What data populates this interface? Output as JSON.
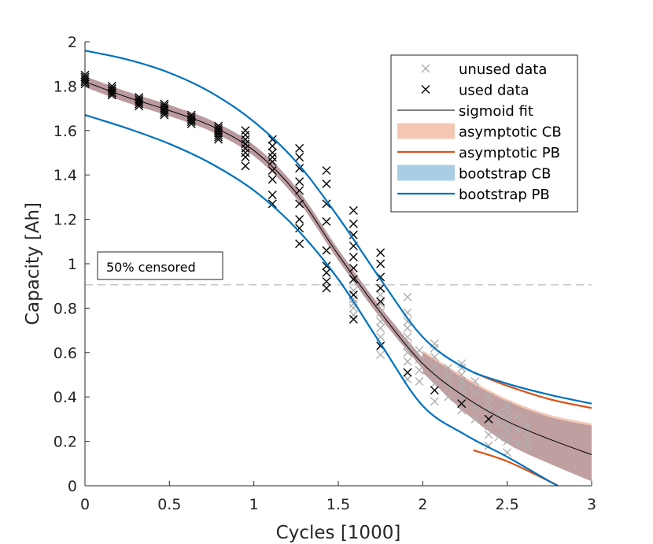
{
  "chart_data": {
    "type": "scatter",
    "xlabel": "Cycles [1000]",
    "ylabel": "Capacity [Ah]",
    "xlim": [
      0,
      3
    ],
    "ylim": [
      0,
      2
    ],
    "x_ticks": [
      "0",
      "0.5",
      "1",
      "1.5",
      "2",
      "2.5",
      "3"
    ],
    "y_ticks": [
      "0",
      "0.2",
      "0.4",
      "0.6",
      "0.8",
      "1",
      "1.2",
      "1.4",
      "1.6",
      "1.8",
      "2"
    ],
    "x_tick_values": [
      0,
      0.5,
      1,
      1.5,
      2,
      2.5,
      3
    ],
    "y_tick_values": [
      0,
      0.2,
      0.4,
      0.6,
      0.8,
      1,
      1.2,
      1.4,
      1.6,
      1.8,
      2
    ],
    "censor_threshold": 0.905,
    "annotation": "50% censored",
    "legend": {
      "position": "top-right",
      "entries": [
        {
          "label": "unused data",
          "style": "marker-x",
          "color": "#b0b0b0"
        },
        {
          "label": "used data",
          "style": "marker-x",
          "color": "#000000"
        },
        {
          "label": "sigmoid fit",
          "style": "line",
          "color": "#000000"
        },
        {
          "label": "asymptotic CB",
          "style": "band",
          "color": "#f4c7b4"
        },
        {
          "label": "asymptotic PB",
          "style": "line",
          "color": "#d95319"
        },
        {
          "label": "bootstrap CB",
          "style": "band",
          "color": "#a9cde5"
        },
        {
          "label": "bootstrap PB",
          "style": "line",
          "color": "#0072bd"
        }
      ]
    },
    "colors": {
      "unused": "#b0b0b0",
      "used": "#000000",
      "fit": "#000000",
      "asym_cb": "#f4c7b4",
      "asym_pb": "#d95319",
      "boot_cb": "#a9cde5",
      "boot_pb": "#0072bd",
      "overlap_cb": "#ba9a9e",
      "censor_line": "#b5b5b5"
    },
    "series": [
      {
        "name": "sigmoid fit",
        "x": [
          0,
          0.25,
          0.5,
          0.75,
          1,
          1.25,
          1.5,
          1.75,
          2,
          2.25,
          2.5,
          2.75,
          3
        ],
        "y": [
          1.82,
          1.75,
          1.69,
          1.62,
          1.51,
          1.32,
          1.04,
          0.78,
          0.55,
          0.4,
          0.29,
          0.21,
          0.14
        ]
      },
      {
        "name": "bootstrap PB upper",
        "x": [
          0,
          0.25,
          0.5,
          0.75,
          1,
          1.25,
          1.5,
          1.75,
          2,
          2.25,
          2.5,
          2.75,
          3
        ],
        "y": [
          1.96,
          1.92,
          1.86,
          1.77,
          1.64,
          1.46,
          1.21,
          0.93,
          0.67,
          0.53,
          0.46,
          0.41,
          0.37
        ]
      },
      {
        "name": "bootstrap PB lower",
        "x": [
          0,
          0.25,
          0.5,
          0.75,
          1,
          1.25,
          1.5,
          1.75,
          2,
          2.25,
          2.5,
          2.75,
          2.8
        ],
        "y": [
          1.67,
          1.61,
          1.54,
          1.45,
          1.33,
          1.16,
          0.93,
          0.64,
          0.36,
          0.23,
          0.13,
          0.02,
          0.0
        ]
      },
      {
        "name": "asymptotic PB upper",
        "x": [
          2.3,
          2.5,
          2.75,
          3
        ],
        "y": [
          0.51,
          0.45,
          0.39,
          0.35
        ]
      },
      {
        "name": "asymptotic PB lower",
        "x": [
          2.3,
          2.5,
          2.75,
          2.8
        ],
        "y": [
          0.16,
          0.11,
          0.02,
          0.0
        ]
      },
      {
        "name": "asymptotic CB",
        "x": [
          2,
          2.25,
          2.5,
          2.75,
          3
        ],
        "upper": [
          0.61,
          0.49,
          0.39,
          0.32,
          0.28
        ],
        "lower": [
          0.51,
          0.33,
          0.19,
          0.1,
          0.02
        ]
      },
      {
        "name": "bootstrap CB",
        "x": [
          2,
          2.25,
          2.5,
          2.75,
          3
        ],
        "upper": [
          0.6,
          0.48,
          0.38,
          0.31,
          0.27
        ],
        "lower": [
          0.51,
          0.33,
          0.19,
          0.1,
          0.02
        ]
      }
    ],
    "used_data": [
      {
        "x": 0.0,
        "y": [
          1.81,
          1.82,
          1.83,
          1.84,
          1.85,
          1.82,
          1.84,
          1.83
        ]
      },
      {
        "x": 0.16,
        "y": [
          1.76,
          1.77,
          1.78,
          1.79,
          1.8,
          1.77,
          1.78,
          1.76
        ]
      },
      {
        "x": 0.32,
        "y": [
          1.71,
          1.72,
          1.73,
          1.74,
          1.75,
          1.72,
          1.74,
          1.73
        ]
      },
      {
        "x": 0.47,
        "y": [
          1.67,
          1.68,
          1.69,
          1.7,
          1.71,
          1.72,
          1.68,
          1.7
        ]
      },
      {
        "x": 0.63,
        "y": [
          1.63,
          1.64,
          1.65,
          1.66,
          1.67,
          1.64,
          1.66,
          1.65
        ]
      },
      {
        "x": 0.79,
        "y": [
          1.56,
          1.57,
          1.59,
          1.6,
          1.61,
          1.62,
          1.58,
          1.6
        ]
      },
      {
        "x": 0.95,
        "y": [
          1.44,
          1.48,
          1.5,
          1.52,
          1.54,
          1.56,
          1.58,
          1.6
        ]
      },
      {
        "x": 1.11,
        "y": [
          1.27,
          1.31,
          1.38,
          1.42,
          1.46,
          1.48,
          1.5,
          1.53,
          1.56
        ]
      },
      {
        "x": 1.27,
        "y": [
          1.09,
          1.16,
          1.2,
          1.27,
          1.33,
          1.37,
          1.43,
          1.48,
          1.52
        ]
      },
      {
        "x": 1.43,
        "y": [
          0.89,
          0.92,
          0.96,
          0.99,
          1.06,
          1.19,
          1.27,
          1.36,
          1.42
        ]
      },
      {
        "x": 1.59,
        "y": [
          0.75,
          0.86,
          0.93,
          0.98,
          1.03,
          1.08,
          1.13,
          1.18,
          1.24
        ]
      },
      {
        "x": 1.75,
        "y": [
          0.63,
          0.83,
          0.89,
          0.94,
          1.0,
          1.05
        ]
      },
      {
        "x": 1.91,
        "y": [
          0.51
        ]
      },
      {
        "x": 2.07,
        "y": [
          0.43
        ]
      },
      {
        "x": 2.23,
        "y": [
          0.37
        ]
      },
      {
        "x": 2.39,
        "y": [
          0.3
        ]
      }
    ],
    "unused_data": [
      {
        "x": 1.59,
        "y": [
          0.77,
          0.8,
          0.82,
          0.84,
          0.86,
          0.88
        ]
      },
      {
        "x": 1.75,
        "y": [
          0.59,
          0.63,
          0.67,
          0.71,
          0.74,
          0.78,
          0.82,
          0.86,
          0.89
        ]
      },
      {
        "x": 1.91,
        "y": [
          0.48,
          0.56,
          0.6,
          0.63,
          0.67,
          0.71,
          0.74,
          0.78,
          0.85
        ]
      },
      {
        "x": 2.07,
        "y": [
          0.38,
          0.46,
          0.5,
          0.54,
          0.58,
          0.62,
          0.64
        ]
      },
      {
        "x": 2.23,
        "y": [
          0.34,
          0.37,
          0.41,
          0.44,
          0.47,
          0.5,
          0.53,
          0.55
        ]
      },
      {
        "x": 2.39,
        "y": [
          0.18,
          0.23,
          0.27,
          0.3,
          0.34,
          0.37,
          0.4
        ]
      },
      {
        "x": 2.5,
        "y": [
          0.15,
          0.2,
          0.24,
          0.27,
          0.3,
          0.33,
          0.36
        ]
      },
      {
        "x": 2.62,
        "y": [
          0.18,
          0.21,
          0.24,
          0.27
        ]
      },
      {
        "x": 1.98,
        "y": [
          0.47,
          0.52,
          0.57,
          0.61
        ]
      },
      {
        "x": 2.15,
        "y": [
          0.4,
          0.45,
          0.49,
          0.53
        ]
      },
      {
        "x": 2.31,
        "y": [
          0.3,
          0.36,
          0.42,
          0.47
        ]
      },
      {
        "x": 2.45,
        "y": [
          0.22,
          0.28,
          0.33
        ]
      },
      {
        "x": 2.56,
        "y": [
          0.19,
          0.25,
          0.31
        ]
      }
    ]
  }
}
